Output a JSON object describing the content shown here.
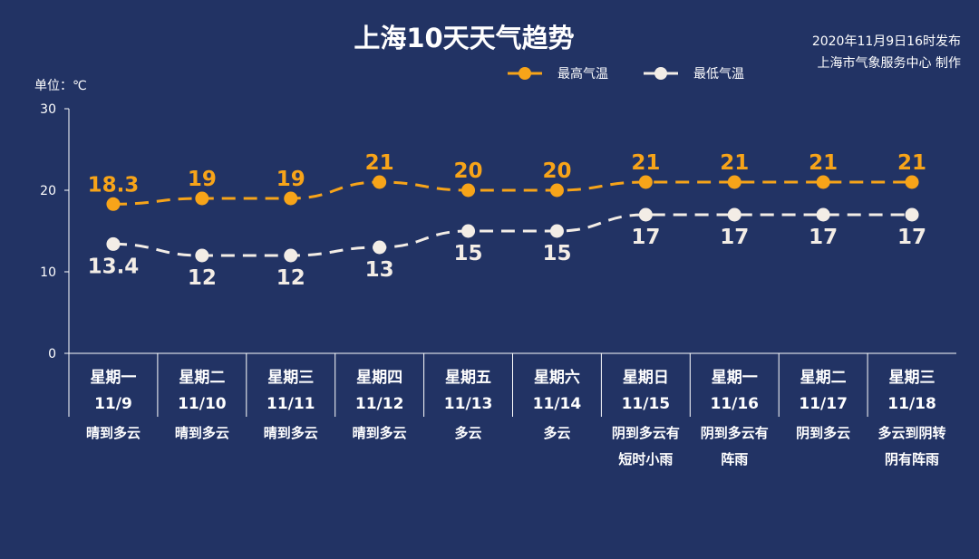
{
  "title": "上海10天天气趋势",
  "publish": {
    "time": "2020年11月9日16时发布",
    "producer": "上海市气象服务中心 制作"
  },
  "unit_label": "单位：℃",
  "colors": {
    "background": "#223364",
    "high": "#F7A419",
    "low": "#F3EDE6",
    "axis": "#FFFFFF"
  },
  "chart_data": {
    "type": "line",
    "title": "上海10天天气趋势",
    "ylim": [
      0,
      30
    ],
    "yticks": [
      0,
      10,
      20,
      30
    ],
    "legend": "top-center",
    "categories": [
      {
        "weekday": "星期一",
        "date": "11/9",
        "weather": [
          "晴到多云"
        ]
      },
      {
        "weekday": "星期二",
        "date": "11/10",
        "weather": [
          "晴到多云"
        ]
      },
      {
        "weekday": "星期三",
        "date": "11/11",
        "weather": [
          "晴到多云"
        ]
      },
      {
        "weekday": "星期四",
        "date": "11/12",
        "weather": [
          "晴到多云"
        ]
      },
      {
        "weekday": "星期五",
        "date": "11/13",
        "weather": [
          "多云"
        ]
      },
      {
        "weekday": "星期六",
        "date": "11/14",
        "weather": [
          "多云"
        ]
      },
      {
        "weekday": "星期日",
        "date": "11/15",
        "weather": [
          "阴到多云有",
          "短时小雨"
        ]
      },
      {
        "weekday": "星期一",
        "date": "11/16",
        "weather": [
          "阴到多云有",
          "阵雨"
        ]
      },
      {
        "weekday": "星期二",
        "date": "11/17",
        "weather": [
          "阴到多云"
        ]
      },
      {
        "weekday": "星期三",
        "date": "11/18",
        "weather": [
          "多云到阴转",
          "阴有阵雨"
        ]
      }
    ],
    "series": [
      {
        "name": "最高气温",
        "key": "high",
        "values": [
          18.3,
          19,
          19,
          21,
          20,
          20,
          21,
          21,
          21,
          21
        ],
        "labels": [
          "18.3",
          "19",
          "19",
          "21",
          "20",
          "20",
          "21",
          "21",
          "21",
          "21"
        ]
      },
      {
        "name": "最低气温",
        "key": "low",
        "values": [
          13.4,
          12,
          12,
          13,
          15,
          15,
          17,
          17,
          17,
          17
        ],
        "labels": [
          "13.4",
          "12",
          "12",
          "13",
          "15",
          "15",
          "17",
          "17",
          "17",
          "17"
        ]
      }
    ]
  }
}
